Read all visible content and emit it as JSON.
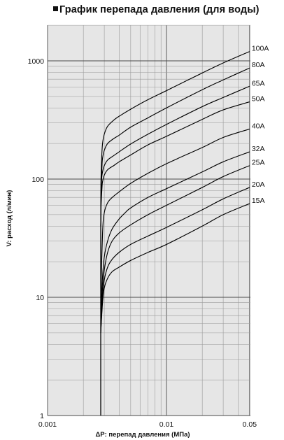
{
  "title": "График перепада давления (для воды)",
  "colors": {
    "plot_background": "#e6e6e6",
    "grid_minor": "#9a9a9a",
    "grid_major": "#4a4a4a",
    "curve": "#000000"
  },
  "chart_data": {
    "type": "line",
    "title": "График перепада давления (для воды)",
    "xlabel": "ΔP: перепад давления (МПа)",
    "ylabel": "V: расход (л/мин)",
    "x_scale": "log",
    "y_scale": "log",
    "xlim": [
      0.001,
      0.05
    ],
    "ylim": [
      1,
      2000
    ],
    "x_ticks": [
      {
        "value": 0.001,
        "label": "0.001"
      },
      {
        "value": 0.01,
        "label": "0.01"
      },
      {
        "value": 0.05,
        "label": "0.05"
      }
    ],
    "y_ticks": [
      {
        "value": 1,
        "label": "1"
      },
      {
        "value": 10,
        "label": "10"
      },
      {
        "value": 100,
        "label": "100"
      },
      {
        "value": 1000,
        "label": "1000"
      }
    ],
    "grid": true,
    "legend": "labels at right end of curves",
    "series": [
      {
        "name": "100A",
        "x": [
          0.0028,
          0.00281,
          0.00285,
          0.0029,
          0.003,
          0.0032,
          0.0036,
          0.004,
          0.005,
          0.007,
          0.01,
          0.02,
          0.03,
          0.05
        ],
        "y": [
          40,
          90,
          150,
          200,
          240,
          280,
          315,
          340,
          390,
          470,
          560,
          790,
          960,
          1200
        ]
      },
      {
        "name": "80A",
        "x": [
          0.0028,
          0.00282,
          0.00287,
          0.0029,
          0.003,
          0.0032,
          0.0036,
          0.004,
          0.005,
          0.007,
          0.01,
          0.02,
          0.03,
          0.05
        ],
        "y": [
          40,
          80,
          130,
          150,
          175,
          200,
          220,
          235,
          275,
          330,
          400,
          570,
          690,
          870
        ]
      },
      {
        "name": "65A",
        "x": [
          0.0028,
          0.00282,
          0.00285,
          0.0029,
          0.003,
          0.0032,
          0.0036,
          0.004,
          0.005,
          0.007,
          0.01,
          0.02,
          0.03,
          0.05
        ],
        "y": [
          40,
          70,
          100,
          115,
          130,
          145,
          158,
          170,
          198,
          240,
          290,
          410,
          490,
          610
        ]
      },
      {
        "name": "50A",
        "x": [
          0.0028,
          0.00282,
          0.00287,
          0.0029,
          0.003,
          0.0032,
          0.0036,
          0.004,
          0.005,
          0.007,
          0.01,
          0.02,
          0.03,
          0.05
        ],
        "y": [
          40,
          60,
          85,
          95,
          108,
          120,
          130,
          140,
          160,
          195,
          230,
          320,
          385,
          450
        ]
      },
      {
        "name": "40A",
        "x": [
          0.0028,
          0.0029,
          0.003,
          0.0032,
          0.0035,
          0.004,
          0.005,
          0.007,
          0.01,
          0.02,
          0.03,
          0.05
        ],
        "y": [
          10,
          35,
          52,
          63,
          70,
          78,
          92,
          112,
          135,
          185,
          225,
          265
        ]
      },
      {
        "name": "32A",
        "x": [
          0.0028,
          0.0029,
          0.003,
          0.0032,
          0.0035,
          0.004,
          0.0045,
          0.005,
          0.007,
          0.01,
          0.02,
          0.03,
          0.05
        ],
        "y": [
          8,
          15,
          22,
          30,
          38,
          46,
          52,
          57,
          70,
          83,
          115,
          140,
          170
        ]
      },
      {
        "name": "25A",
        "x": [
          0.0028,
          0.0029,
          0.003,
          0.0032,
          0.0035,
          0.004,
          0.005,
          0.007,
          0.01,
          0.02,
          0.03,
          0.05
        ],
        "y": [
          6,
          12,
          17,
          24,
          30,
          35,
          41,
          50,
          60,
          85,
          105,
          130
        ]
      },
      {
        "name": "20A",
        "x": [
          0.0028,
          0.0029,
          0.003,
          0.0032,
          0.0035,
          0.004,
          0.005,
          0.007,
          0.01,
          0.02,
          0.03,
          0.05
        ],
        "y": [
          5,
          10,
          14,
          18,
          21,
          24,
          28,
          33,
          39,
          55,
          68,
          85
        ]
      },
      {
        "name": "15A",
        "x": [
          0.0028,
          0.0029,
          0.003,
          0.0032,
          0.0035,
          0.004,
          0.005,
          0.007,
          0.01,
          0.02,
          0.03,
          0.05
        ],
        "y": [
          5,
          9,
          12,
          14.5,
          16.5,
          18,
          20.5,
          24,
          28,
          40,
          50,
          62
        ]
      }
    ]
  }
}
